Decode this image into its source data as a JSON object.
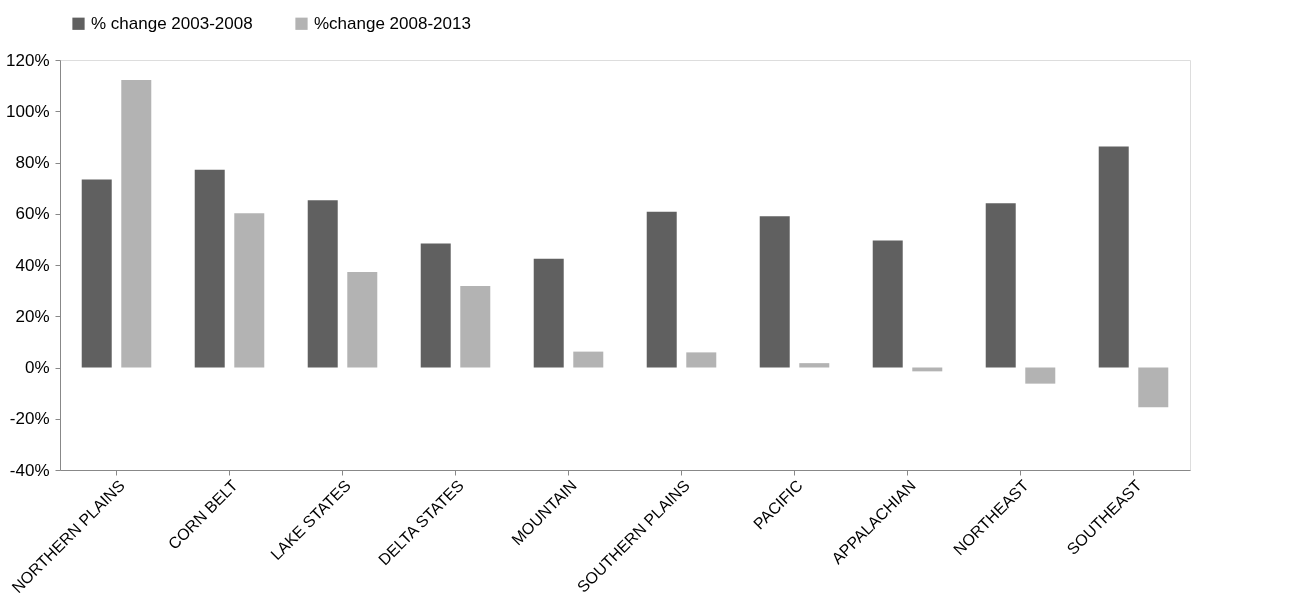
{
  "chart_data": {
    "type": "bar",
    "categories": [
      "NORTHERN PLAINS",
      "CORN BELT",
      "LAKE STATES",
      "DELTA STATES",
      "MOUNTAIN",
      "SOUTHERN PLAINS",
      "PACIFIC",
      "APPALACHIAN",
      "NORTHEAST",
      "SOUTHEAST"
    ],
    "series": [
      {
        "name": "% change 2003-2008",
        "color": "#606060",
        "values": [
          73.4,
          77.2,
          65.3,
          48.4,
          42.4,
          60.8,
          59.0,
          49.6,
          64.1,
          86.2
        ]
      },
      {
        "name": "%change 2008-2013",
        "color": "#b3b3b3",
        "values": [
          112.2,
          60.2,
          37.3,
          31.8,
          6.2,
          5.9,
          1.7,
          -1.5,
          -6.3,
          -15.5
        ]
      }
    ],
    "ylim": [
      -40,
      120
    ],
    "yticks": [
      {
        "value": -40,
        "label": "-40%"
      },
      {
        "value": -20,
        "label": "-20%"
      },
      {
        "value": 0,
        "label": "0%"
      },
      {
        "value": 20,
        "label": "20%"
      },
      {
        "value": 40,
        "label": "40%"
      },
      {
        "value": 60,
        "label": "60%"
      },
      {
        "value": 80,
        "label": "80%"
      },
      {
        "value": 100,
        "label": "100%"
      },
      {
        "value": 120,
        "label": "120%"
      }
    ],
    "grid": false,
    "legend": "top"
  }
}
